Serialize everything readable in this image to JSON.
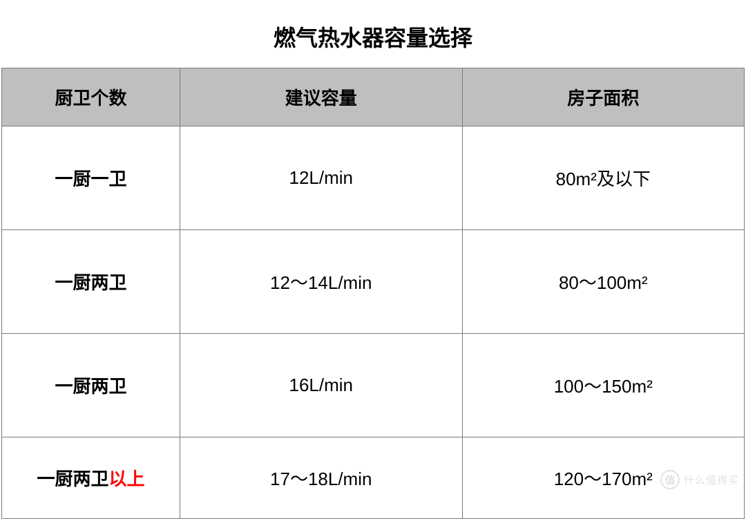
{
  "title": "燃气热水器容量选择",
  "columns": [
    "厨卫个数",
    "建议容量",
    "房子面积"
  ],
  "colWidths": [
    "24%",
    "38%",
    "38%"
  ],
  "rows": [
    {
      "height": "tall",
      "cells": [
        {
          "text": "一厨一卫"
        },
        {
          "text": "12L/min"
        },
        {
          "text": "80m²及以下"
        }
      ]
    },
    {
      "height": "tall",
      "cells": [
        {
          "text": "一厨两卫"
        },
        {
          "text": "12～14L/min"
        },
        {
          "text": "80～100m²"
        }
      ]
    },
    {
      "height": "tall",
      "cells": [
        {
          "text": "一厨两卫"
        },
        {
          "text": "16L/min"
        },
        {
          "text": "100～150m²"
        }
      ]
    },
    {
      "height": "short",
      "cells": [
        {
          "text": "一厨两卫",
          "highlightSuffix": "以上"
        },
        {
          "text": "17～18L/min"
        },
        {
          "text": "120～170m²"
        }
      ]
    }
  ],
  "styling": {
    "headerBackground": "#bfbfbf",
    "borderColor": "#7a7a7a",
    "titleFontSize": 32,
    "headerFontSize": 26,
    "cellFontSize": 26,
    "highlightColor": "#ff0000",
    "textColor": "#000000",
    "background": "#ffffff",
    "headerRowHeight": 84,
    "rowHeightTall": 150,
    "rowHeightShort": 118
  },
  "watermark": {
    "badge": "值",
    "text": "什么值得买"
  }
}
